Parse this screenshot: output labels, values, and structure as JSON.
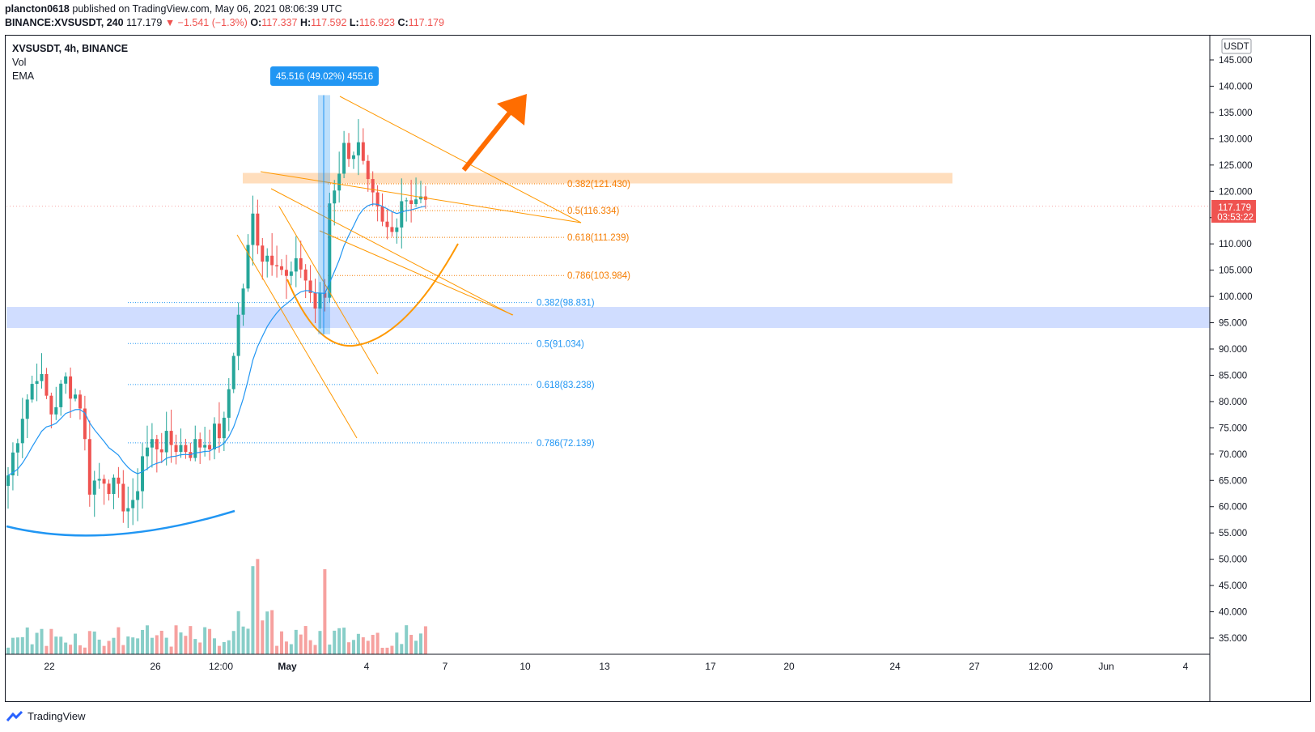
{
  "header": {
    "user": "plancton0618",
    "published": "published on TradingView.com, May 06, 2021 08:06:39 UTC",
    "symbol": "BINANCE:XVSUSDT, 240",
    "price": "117.179",
    "change": "▼ −1.541 (−1.3%)",
    "o_label": "O:",
    "o": "117.337",
    "h_label": "H:",
    "h": "117.592",
    "l_label": "L:",
    "l": "116.923",
    "c_label": "C:",
    "c": "117.179"
  },
  "legend": {
    "title": "XVSUSDT, 4h, BINANCE",
    "vol": "Vol",
    "ema": "EMA"
  },
  "currency_label": "USDT",
  "last_price": {
    "value": "117.179",
    "countdown": "03:53:22"
  },
  "measure_label": "45.516 (49.02%) 45516",
  "footer": {
    "brand": "TradingView"
  },
  "colors": {
    "up": "#26a69a",
    "down": "#ef5350",
    "ema": "#2196f3",
    "orange": "#ff9800",
    "arrow": "#ff6d00",
    "zone_blue": "#2962ff",
    "fib_blue": "#2196f3",
    "fib_orange": "#f57c00"
  },
  "chart_data": {
    "type": "candlestick",
    "y_axis": {
      "ticks": [
        145,
        140,
        135,
        130,
        125,
        120,
        115,
        110,
        105,
        100,
        95,
        90,
        85,
        80,
        75,
        70,
        65,
        60,
        55,
        50,
        45,
        40,
        35
      ],
      "labels": [
        "145.000",
        "140.000",
        "135.000",
        "130.000",
        "125.000",
        "120.000",
        "115.000",
        "110.000",
        "105.000",
        "100.000",
        "95.000",
        "90.000",
        "85.000",
        "80.000",
        "75.000",
        "70.000",
        "65.000",
        "60.000",
        "55.000",
        "50.000",
        "45.000",
        "40.000",
        "35.000"
      ],
      "ylim": [
        30.5,
        149
      ]
    },
    "x_axis": {
      "labels": [
        "22",
        "26",
        "12:00",
        "May",
        "4",
        "7",
        "10",
        "13",
        "17",
        "20",
        "24",
        "27",
        "12:00",
        "Jun",
        "4"
      ]
    },
    "fib_blue": [
      {
        "label": "0.382(98.831)",
        "price": 98.831
      },
      {
        "label": "0.5(91.034)",
        "price": 91.034
      },
      {
        "label": "0.618(83.238)",
        "price": 83.238
      },
      {
        "label": "0.786(72.139)",
        "price": 72.139
      }
    ],
    "fib_orange": [
      {
        "label": "0.382(121.430)",
        "price": 121.43
      },
      {
        "label": "0.5(116.334)",
        "price": 116.334
      },
      {
        "label": "0.618(111.239)",
        "price": 111.239
      },
      {
        "label": "0.786(103.984)",
        "price": 103.984
      }
    ],
    "resistance_zone": [
      121.5,
      123.5
    ],
    "support_zone": [
      94,
      98
    ],
    "measure": {
      "from": 92.8,
      "to": 138.3
    }
  }
}
